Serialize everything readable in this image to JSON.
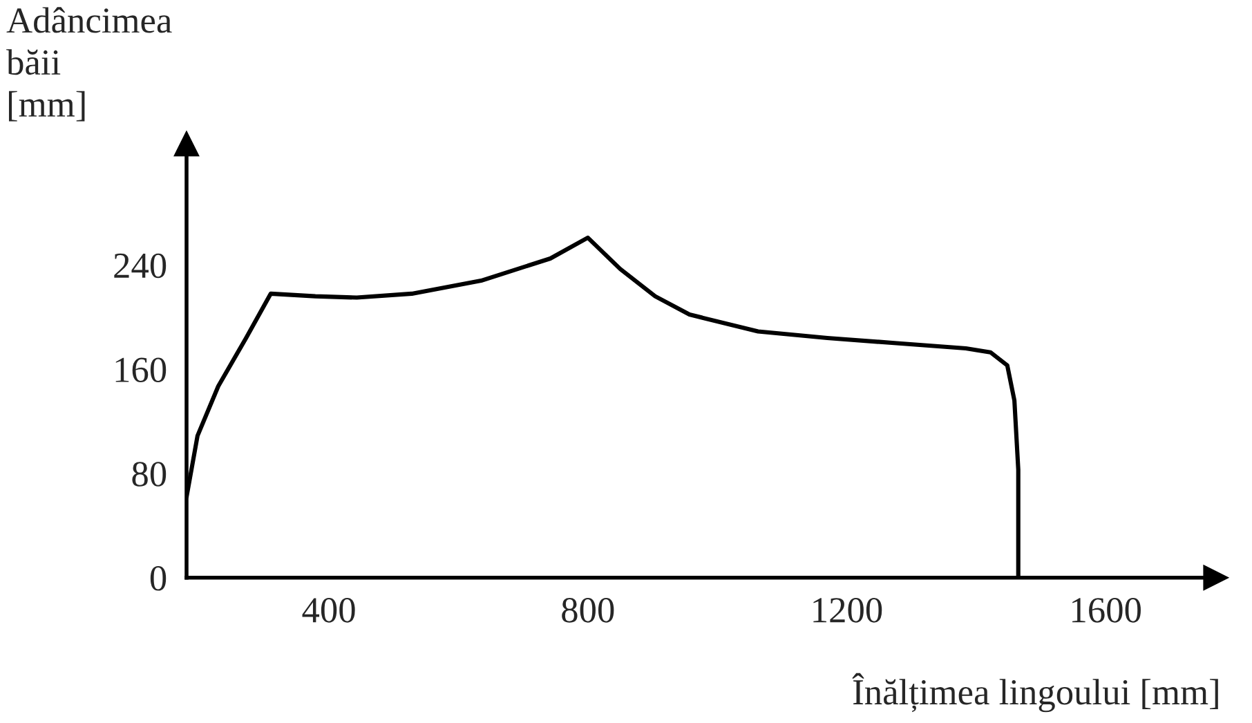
{
  "chart_data": {
    "type": "line",
    "xlabel": "Înălțimea lingoului [mm]",
    "ylabel": "Adâncimea\nbăii\n[mm]",
    "x": [
      180,
      197,
      229,
      272,
      310,
      379,
      443,
      528,
      635,
      742,
      800,
      850,
      904,
      957,
      1063,
      1170,
      1277,
      1384,
      1422,
      1448,
      1459,
      1465,
      1465
    ],
    "series": [
      {
        "color": "#000000",
        "values": [
          62,
          109,
          147,
          184,
          218,
          216,
          215,
          218,
          228,
          245,
          261,
          237,
          216,
          202,
          189,
          184,
          180,
          176,
          173,
          163,
          136,
          83,
          0
        ]
      }
    ],
    "xlim": [
      180,
      1770
    ],
    "ylim": [
      0,
      333
    ],
    "xticks": [
      400,
      800,
      1200,
      1600
    ],
    "yticks": [
      0,
      80,
      160,
      240
    ],
    "grid": false,
    "legend": false,
    "marker": "none",
    "line_style": "solid"
  }
}
